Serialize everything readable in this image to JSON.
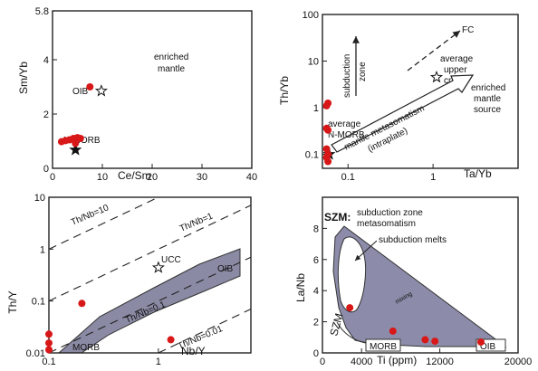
{
  "colors": {
    "point": "#d81818",
    "axis": "#222222",
    "wedge_fill": "#8a8aa4",
    "wedge_stroke": "#333333",
    "szm_fill": "#8c8caa",
    "white": "#ffffff"
  },
  "chart_data": [
    {
      "id": "a",
      "type": "scatter",
      "xlabel": "Ce/Sm",
      "ylabel": "Sm/Yb",
      "xlim": [
        0,
        40
      ],
      "ylim": [
        0,
        5.8
      ],
      "xticks": [
        0,
        10,
        20,
        30,
        40
      ],
      "yticks": [
        0,
        2,
        4,
        5.8
      ],
      "xtick_labels": [
        "0",
        "10",
        "20",
        "30",
        "40"
      ],
      "ytick_labels": [
        "0",
        "2",
        "4",
        "5.8"
      ],
      "points": [
        {
          "x": 7.5,
          "y": 3.0
        },
        {
          "x": 1.8,
          "y": 0.98
        },
        {
          "x": 2.6,
          "y": 1.02
        },
        {
          "x": 3.4,
          "y": 1.05
        },
        {
          "x": 4.2,
          "y": 1.1
        },
        {
          "x": 5.0,
          "y": 1.13
        },
        {
          "x": 5.6,
          "y": 1.1
        },
        {
          "x": 4.6,
          "y": 0.92
        }
      ],
      "references": [
        {
          "label": "OIB",
          "x": 9.8,
          "y": 2.85,
          "marker": "open-star"
        },
        {
          "label": "N-MORB",
          "x": 4.6,
          "y": 0.68,
          "marker": "filled-star"
        }
      ],
      "annotations": [
        "enriched",
        "mantle"
      ]
    },
    {
      "id": "b",
      "type": "scatter",
      "scale": "log-log",
      "xlabel": "Ta/Yb",
      "ylabel": "Th/Yb",
      "xlim": [
        0.05,
        10
      ],
      "ylim": [
        0.05,
        100
      ],
      "yticks": [
        0.1,
        1,
        10,
        100
      ],
      "ytick_labels": [
        "0.1",
        "1",
        "10",
        "100"
      ],
      "xticks": [
        0.1,
        1
      ],
      "xtick_labels": [
        "0.1",
        "1"
      ],
      "points": [
        {
          "x": 0.056,
          "y": 1.1
        },
        {
          "x": 0.058,
          "y": 1.25
        },
        {
          "x": 0.056,
          "y": 0.36
        },
        {
          "x": 0.058,
          "y": 0.33
        },
        {
          "x": 0.056,
          "y": 0.13
        },
        {
          "x": 0.058,
          "y": 0.1
        },
        {
          "x": 0.056,
          "y": 0.085
        },
        {
          "x": 0.058,
          "y": 0.07
        }
      ],
      "references": [
        {
          "label": "average upper crust",
          "x": 1.1,
          "y": 4.5,
          "marker": "open-star"
        },
        {
          "label": "average N-MORB",
          "x": 0.06,
          "y": 0.1,
          "marker": "filled-star"
        }
      ],
      "annotations": {
        "subduction_zone": [
          "subduction",
          "zone"
        ],
        "fc": "FC",
        "upper_crust": [
          "average",
          "upper",
          "crust"
        ],
        "enriched_source": [
          "enriched",
          "mantle",
          "source"
        ],
        "nmorb": [
          "average",
          "N-MORB"
        ],
        "metasomatism": [
          "mantle metasomatism",
          "(intraplate)"
        ]
      }
    },
    {
      "id": "c",
      "type": "scatter",
      "scale": "log-log",
      "xlabel": "Nb/Y",
      "ylabel": "Th/Y",
      "xlim": [
        0.1,
        7
      ],
      "ylim": [
        0.01,
        10
      ],
      "yticks": [
        0.01,
        0.1,
        1,
        10
      ],
      "ytick_labels": [
        "0.01",
        "0.1",
        "1",
        "10"
      ],
      "xticks": [
        0.1,
        1
      ],
      "xtick_labels": [
        "0.1",
        "1"
      ],
      "points": [
        {
          "x": 0.2,
          "y": 0.09
        },
        {
          "x": 0.1,
          "y": 0.023
        },
        {
          "x": 0.1,
          "y": 0.0155
        },
        {
          "x": 0.1,
          "y": 0.0115
        },
        {
          "x": 1.3,
          "y": 0.018
        }
      ],
      "references": [
        {
          "label": "UCC",
          "x": 1.0,
          "y": 0.44,
          "marker": "open-star"
        }
      ],
      "ratio_lines": [
        {
          "label": "Th/Nb=10",
          "ratio": 10
        },
        {
          "label": "Th/Nb=1",
          "ratio": 1
        },
        {
          "label": "Th/Nb=0.1",
          "ratio": 0.1
        },
        {
          "label": "Th/Nb=0.01",
          "ratio": 0.01
        }
      ],
      "annotations": {
        "morb": "MORB",
        "oib": "OIB"
      }
    },
    {
      "id": "d",
      "type": "scatter",
      "xlabel": "Ti (ppm)",
      "ylabel": "La/Nb",
      "xlim": [
        0,
        20000
      ],
      "ylim": [
        0,
        10
      ],
      "xticks": [
        0,
        4000,
        12000,
        20000
      ],
      "xtick_labels": [
        "0",
        "4000",
        "12000",
        "20000"
      ],
      "yticks": [
        0,
        2,
        4,
        6,
        8
      ],
      "ytick_labels": [
        "0",
        "2",
        "4",
        "6",
        "8"
      ],
      "points": [
        {
          "x": 2800,
          "y": 2.9
        },
        {
          "x": 7200,
          "y": 1.4
        },
        {
          "x": 10500,
          "y": 0.85
        },
        {
          "x": 11500,
          "y": 0.75
        },
        {
          "x": 16200,
          "y": 0.7
        }
      ],
      "annotations": {
        "szm_title": "SZM:",
        "szm_desc": [
          "subduction zone",
          "metasomatism"
        ],
        "subduction_melts": "subduction melts",
        "mixing": "mixing",
        "szm": "SZM",
        "morb": "MORB",
        "oib": "OIB"
      }
    }
  ]
}
